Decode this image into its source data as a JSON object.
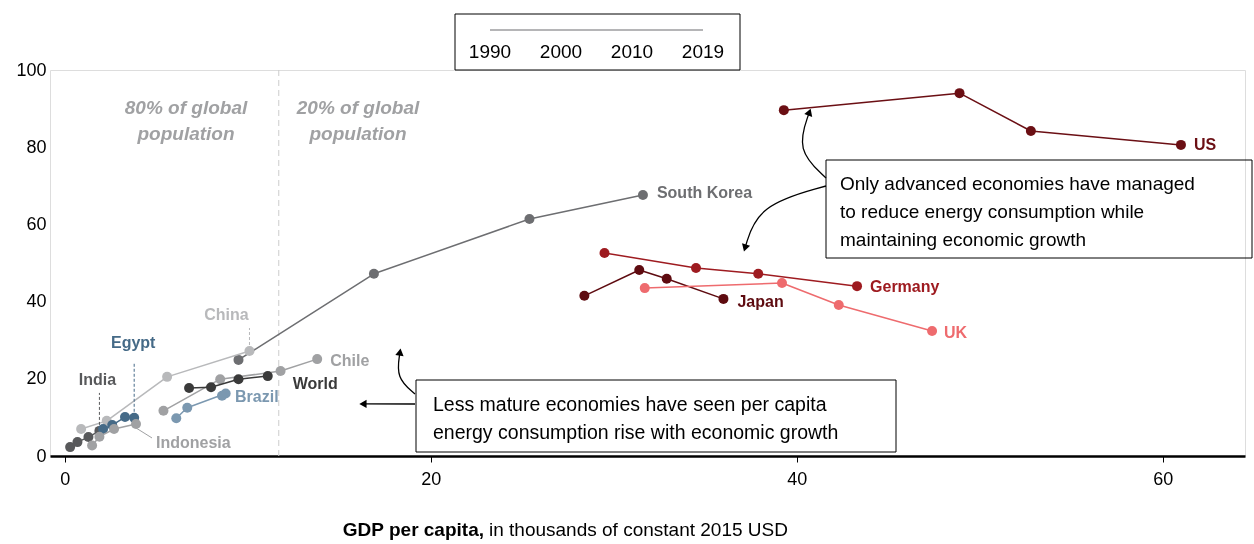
{
  "chart_data": {
    "type": "line",
    "xlabel": "GDP per capita, in thousands of constant 2015 USD",
    "xlim": [
      -0.8,
      64.5
    ],
    "ylim": [
      0,
      100
    ],
    "xticks": [
      0,
      20,
      40,
      60
    ],
    "yticks": [
      0,
      20,
      40,
      60,
      80,
      100
    ],
    "grid": false,
    "marker": "circle",
    "line_style": "solid",
    "ref_lines": [
      {
        "axis": "x",
        "value": 11.7,
        "label": null,
        "color": "#cccccc",
        "line_style": "dashed"
      }
    ],
    "annotations": [
      "80% of global population",
      "20% of global population",
      {
        "text": "Only advanced economies have managed to reduce energy consumption while maintaining economic growth",
        "x": 40.7,
        "y": 89.1
      },
      {
        "text": "Less mature economies have seen per capita energy consumption rise with economic growth",
        "x": 16.3,
        "y": 13.5
      },
      "1990",
      "2000",
      "2010",
      "2019"
    ],
    "series": [
      {
        "name": "US",
        "color": "#6b0f14",
        "x": [
          39.3,
          48.9,
          52.8,
          61.0
        ],
        "values": [
          89.6,
          94.0,
          84.2,
          80.6
        ]
      },
      {
        "name": "Germany",
        "color": "#9e1b20",
        "x": [
          29.5,
          34.5,
          37.9,
          43.3
        ],
        "values": [
          52.6,
          48.7,
          47.2,
          44.0
        ]
      },
      {
        "name": "Japan",
        "color": "#5e0b10",
        "x": [
          28.4,
          31.4,
          32.9,
          36.0
        ],
        "values": [
          41.5,
          48.2,
          45.9,
          40.7
        ]
      },
      {
        "name": "UK",
        "color": "#ee6b6e",
        "x": [
          31.7,
          39.2,
          42.3,
          47.4
        ],
        "values": [
          43.5,
          44.8,
          39.1,
          32.4
        ]
      },
      {
        "name": "South Korea",
        "color": "#6d6e71",
        "x": [
          9.5,
          16.9,
          25.4,
          31.6
        ],
        "values": [
          24.9,
          47.2,
          61.4,
          67.6
        ]
      },
      {
        "name": "China",
        "color": "#b8b9bb",
        "x": [
          0.9,
          2.3,
          5.6,
          10.1
        ],
        "values": [
          7.0,
          9.1,
          20.5,
          27.2
        ]
      },
      {
        "name": "India",
        "color": "#58595b",
        "x": [
          0.3,
          0.7,
          1.3,
          1.9
        ],
        "values": [
          2.3,
          3.6,
          4.9,
          6.5
        ]
      },
      {
        "name": "Egypt",
        "color": "#456a87",
        "x": [
          2.1,
          2.6,
          3.3,
          3.8
        ],
        "values": [
          7.0,
          8.0,
          10.1,
          9.9
        ]
      },
      {
        "name": "Indonesia",
        "color": "#a0a1a3",
        "x": [
          1.5,
          1.9,
          2.7,
          3.9
        ],
        "values": [
          2.7,
          5.0,
          7.0,
          8.3
        ]
      },
      {
        "name": "Brazil",
        "color": "#7b98b0",
        "x": [
          6.1,
          6.7,
          8.8,
          8.6
        ],
        "values": [
          9.8,
          12.5,
          16.2,
          15.6
        ]
      },
      {
        "name": "Chile",
        "color": "#a0a1a3",
        "x": [
          5.4,
          8.5,
          11.8,
          13.8
        ],
        "values": [
          11.7,
          19.9,
          22.0,
          25.1
        ]
      },
      {
        "name": "World",
        "color": "#3a3a3a",
        "x": [
          6.8,
          8.0,
          9.5,
          11.1
        ],
        "values": [
          17.6,
          17.8,
          19.9,
          20.7
        ]
      }
    ]
  }
}
